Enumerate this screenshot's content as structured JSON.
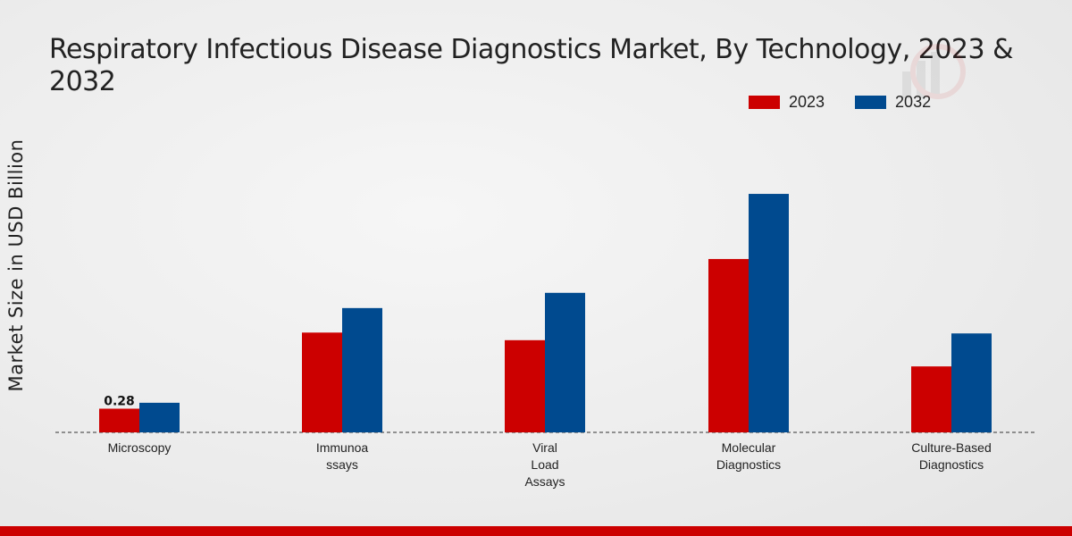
{
  "chart_data": {
    "type": "bar",
    "title": "Respiratory Infectious Disease Diagnostics Market, By Technology, 2023 & 2032",
    "ylabel": "Market Size in USD Billion",
    "xlabel": "",
    "categories": [
      [
        "Microscopy"
      ],
      [
        "Immunoa",
        "ssays"
      ],
      [
        "Viral",
        "Load",
        "Assays"
      ],
      [
        "Molecular",
        "Diagnostics"
      ],
      [
        "Culture-Based",
        "Diagnostics"
      ]
    ],
    "series": [
      {
        "name": "2023",
        "color": "#cc0000",
        "values": [
          0.28,
          1.18,
          1.09,
          2.05,
          0.78
        ]
      },
      {
        "name": "2032",
        "color": "#004a8f",
        "values": [
          0.35,
          1.47,
          1.65,
          2.82,
          1.17
        ]
      }
    ],
    "data_labels": [
      {
        "series": 0,
        "index": 0,
        "text": "0.28"
      }
    ],
    "ylim": [
      0,
      3.0
    ],
    "grid": false,
    "legend_position": "top-right"
  }
}
